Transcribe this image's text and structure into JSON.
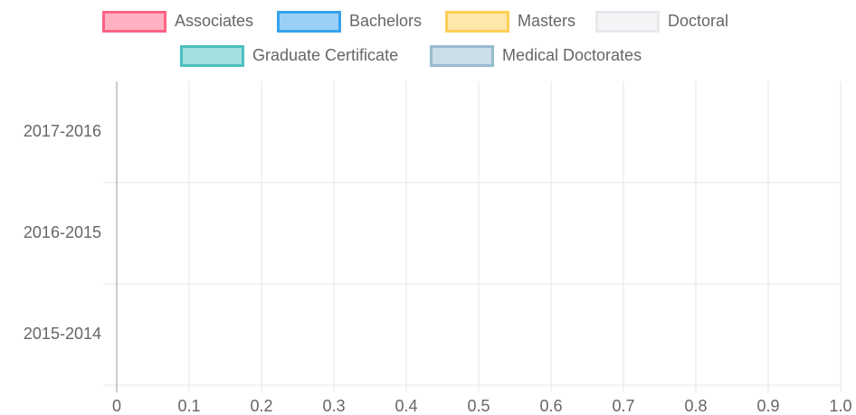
{
  "chart_data": {
    "type": "hbar",
    "categories": [
      "2017-2016",
      "2016-2015",
      "2015-2014"
    ],
    "series": [
      {
        "name": "Associates",
        "color": "#ff6384",
        "values": [
          0,
          0,
          0
        ]
      },
      {
        "name": "Bachelors",
        "color": "#36a2eb",
        "values": [
          0,
          0,
          0
        ]
      },
      {
        "name": "Masters",
        "color": "#ffce56",
        "values": [
          0,
          0,
          0
        ]
      },
      {
        "name": "Doctoral",
        "color": "#e7e9ed",
        "values": [
          0,
          0,
          0
        ]
      },
      {
        "name": "Graduate Certificate",
        "color": "#4bc0c0",
        "values": [
          0,
          0,
          0
        ]
      },
      {
        "name": "Medical Doctorates",
        "color": "#97bbcd",
        "values": [
          0,
          0,
          0
        ]
      }
    ],
    "xlim": [
      0,
      1
    ],
    "xticks": [
      0,
      0.1,
      0.2,
      0.3,
      0.4,
      0.5,
      0.6,
      0.7,
      0.8,
      0.9,
      {
        "value": 1,
        "label": "1.0"
      }
    ],
    "grid": true
  }
}
